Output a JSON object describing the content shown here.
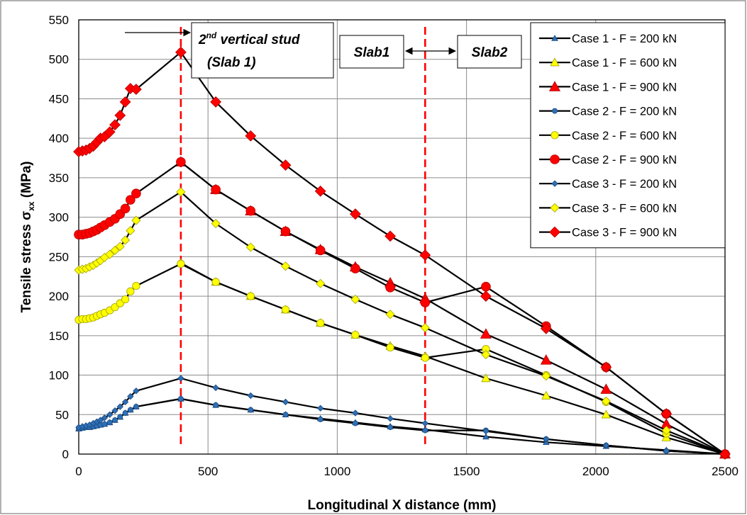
{
  "chart_data": {
    "type": "line",
    "title": "",
    "xlabel": "Longitudinal X distance (mm)",
    "ylabel_main": "Tensile stress σ",
    "ylabel_sub": "xx",
    "ylabel_unit": " (MPa)",
    "xlim": [
      0,
      2500
    ],
    "ylim": [
      0,
      550
    ],
    "xticks": [
      0,
      500,
      1000,
      1500,
      2000,
      2500
    ],
    "yticks": [
      0,
      50,
      100,
      150,
      200,
      250,
      300,
      350,
      400,
      450,
      500,
      550
    ],
    "grid": true,
    "legend_position": "top-right",
    "series": [
      {
        "name": "Case 1 - F = 200 kN",
        "marker": "triangle",
        "marker_color": "#2e6fb5",
        "marker_size": "small",
        "x": [
          0,
          14,
          28,
          42,
          56,
          70,
          84,
          100,
          120,
          140,
          160,
          180,
          200,
          222,
          395,
          530,
          665,
          800,
          935,
          1070,
          1205,
          1340,
          1575,
          1808,
          2040,
          2273,
          2500
        ],
        "y": [
          32,
          33,
          34,
          34,
          35,
          36,
          37,
          38,
          40,
          43,
          47,
          52,
          56,
          60,
          70,
          62,
          56,
          50,
          45,
          40,
          35,
          31,
          22,
          15,
          10,
          5,
          0
        ]
      },
      {
        "name": "Case 1 - F = 600 kN",
        "marker": "triangle",
        "marker_color": "#ffff00",
        "marker_size": "medium",
        "x": [
          395,
          530,
          665,
          800,
          935,
          1070,
          1205,
          1340,
          1575,
          1808,
          2040,
          2273,
          2500
        ],
        "y": [
          242,
          218,
          200,
          183,
          166,
          151,
          137,
          124,
          96,
          74,
          50,
          21,
          0
        ]
      },
      {
        "name": "Case 1 - F = 900 kN",
        "marker": "triangle",
        "marker_color": "#ff0000",
        "marker_size": "large",
        "x": [
          395,
          530,
          665,
          800,
          935,
          1070,
          1205,
          1340,
          1575,
          1808,
          2040,
          2273,
          2500
        ],
        "y": [
          370,
          335,
          308,
          282,
          259,
          237,
          217,
          197,
          152,
          119,
          82,
          38,
          0
        ]
      },
      {
        "name": "Case 2 - F = 200 kN",
        "marker": "circle",
        "marker_color": "#2e6fb5",
        "marker_size": "small",
        "x": [
          0,
          14,
          28,
          42,
          56,
          70,
          84,
          100,
          120,
          140,
          160,
          180,
          200,
          222,
          395,
          530,
          665,
          800,
          935,
          1070,
          1205,
          1340,
          1575,
          1808,
          2040,
          2273,
          2500
        ],
        "y": [
          32,
          33,
          34,
          34,
          35,
          36,
          37,
          38,
          40,
          43,
          47,
          52,
          56,
          60,
          70,
          62,
          56,
          50,
          44,
          39,
          34,
          30,
          30,
          19,
          11,
          4,
          0
        ]
      },
      {
        "name": "Case 2 - F = 600 kN",
        "marker": "circle",
        "marker_color": "#ffff00",
        "marker_size": "medium",
        "x": [
          0,
          14,
          28,
          42,
          56,
          70,
          84,
          100,
          120,
          140,
          160,
          180,
          200,
          222,
          395,
          530,
          665,
          800,
          935,
          1070,
          1205,
          1340,
          1575,
          1808,
          2040,
          2273,
          2500
        ],
        "y": [
          170,
          171,
          171,
          172,
          173,
          175,
          177,
          179,
          182,
          186,
          191,
          196,
          206,
          213,
          241,
          218,
          200,
          183,
          166,
          151,
          135,
          122,
          133,
          100,
          66,
          26,
          0
        ]
      },
      {
        "name": "Case 2 - F = 900 kN",
        "marker": "circle",
        "marker_color": "#ff0000",
        "marker_size": "large",
        "x": [
          0,
          14,
          28,
          42,
          56,
          70,
          84,
          100,
          120,
          140,
          160,
          180,
          200,
          222,
          395,
          530,
          665,
          800,
          935,
          1070,
          1205,
          1340,
          1575,
          1808,
          2040,
          2273,
          2500
        ],
        "y": [
          278,
          278,
          279,
          280,
          282,
          284,
          287,
          290,
          294,
          298,
          304,
          311,
          322,
          330,
          370,
          335,
          308,
          282,
          258,
          235,
          211,
          192,
          212,
          162,
          110,
          51,
          0
        ]
      },
      {
        "name": "Case 3 - F = 200 kN",
        "marker": "diamond",
        "marker_color": "#2e6fb5",
        "marker_size": "small",
        "x": [
          0,
          14,
          28,
          42,
          56,
          70,
          84,
          100,
          120,
          140,
          160,
          180,
          200,
          222,
          395,
          530,
          665,
          800,
          935,
          1070,
          1205,
          1340,
          1575,
          1808,
          2040,
          2273,
          2500
        ],
        "y": [
          34,
          35,
          36,
          37,
          39,
          41,
          43,
          46,
          50,
          55,
          60,
          66,
          73,
          80,
          96,
          84,
          74,
          66,
          58,
          52,
          45,
          39,
          29,
          19,
          11,
          4,
          0
        ]
      },
      {
        "name": "Case 3 - F = 600 kN",
        "marker": "diamond",
        "marker_color": "#ffff00",
        "marker_size": "medium",
        "x": [
          0,
          14,
          28,
          42,
          56,
          70,
          84,
          100,
          120,
          140,
          160,
          180,
          200,
          222,
          395,
          530,
          665,
          800,
          935,
          1070,
          1205,
          1340,
          1575,
          1808,
          2040,
          2273,
          2500
        ],
        "y": [
          233,
          234,
          235,
          237,
          239,
          242,
          245,
          249,
          253,
          258,
          263,
          271,
          283,
          296,
          332,
          292,
          262,
          238,
          216,
          196,
          177,
          160,
          126,
          99,
          67,
          30,
          0
        ]
      },
      {
        "name": "Case 3 - F = 900 kN",
        "marker": "diamond",
        "marker_color": "#ff0000",
        "marker_size": "large",
        "x": [
          0,
          14,
          28,
          42,
          56,
          70,
          84,
          100,
          120,
          140,
          160,
          180,
          200,
          222,
          395,
          530,
          665,
          800,
          935,
          1070,
          1205,
          1340,
          1575,
          1808,
          2040,
          2273,
          2500
        ],
        "y": [
          383,
          384,
          385,
          387,
          390,
          395,
          400,
          402,
          408,
          417,
          429,
          446,
          463,
          462,
          509,
          446,
          403,
          366,
          333,
          304,
          276,
          252,
          200,
          159,
          110,
          51,
          0
        ]
      }
    ],
    "reference_lines": [
      {
        "x": 395,
        "color": "#ff0000",
        "style": "dashed"
      },
      {
        "x": 1340,
        "color": "#ff0000",
        "style": "dashed"
      }
    ],
    "annotations": {
      "stud_line1_num": "2",
      "stud_line1_sup": "nd",
      "stud_line1_rest": " vertical stud",
      "stud_line2": "(Slab 1)",
      "slab1": "Slab1",
      "slab2": "Slab2"
    }
  }
}
